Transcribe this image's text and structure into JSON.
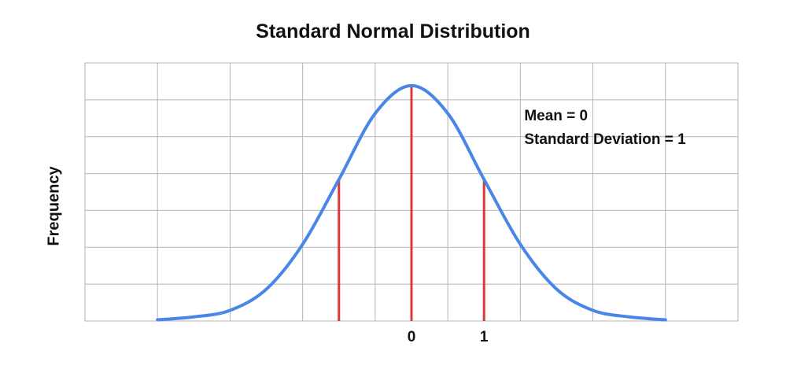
{
  "chart_data": {
    "type": "line",
    "title": "Standard Normal Distribution",
    "xlabel": "",
    "ylabel": "Frequency",
    "xlim": [
      -4.5,
      4.5
    ],
    "ylim": [
      0,
      0.4375
    ],
    "grid": true,
    "x_gridlines": [
      -3.5,
      -2.5,
      -1.5,
      -0.5,
      0.5,
      1.5,
      2.5,
      3.5
    ],
    "y_gridlines": [
      0.0625,
      0.125,
      0.1875,
      0.25,
      0.3125,
      0.375
    ],
    "x_tick_labels": [
      {
        "x": 0,
        "label": "0"
      },
      {
        "x": 1,
        "label": "1"
      }
    ],
    "series": [
      {
        "color": "#4a86e8",
        "x": [
          -3.5,
          -3.0,
          -2.5,
          -2.0,
          -1.5,
          -1.0,
          -0.5,
          0.0,
          0.5,
          1.0,
          1.5,
          2.0,
          2.5,
          3.0,
          3.5
        ],
        "y": [
          0.002,
          0.007,
          0.018,
          0.054,
          0.13,
          0.24,
          0.352,
          0.399,
          0.352,
          0.24,
          0.13,
          0.054,
          0.018,
          0.007,
          0.002
        ]
      }
    ],
    "vertical_markers": [
      {
        "x": -1,
        "color": "#d93a35"
      },
      {
        "x": 0,
        "color": "#d93a35"
      },
      {
        "x": 1,
        "color": "#d93a35"
      }
    ],
    "annotations": [
      {
        "text": "Mean = 0",
        "x": 1.5,
        "y": 0.34
      },
      {
        "text": "Standard Deviation = 1",
        "x": 1.5,
        "y": 0.3
      }
    ]
  }
}
